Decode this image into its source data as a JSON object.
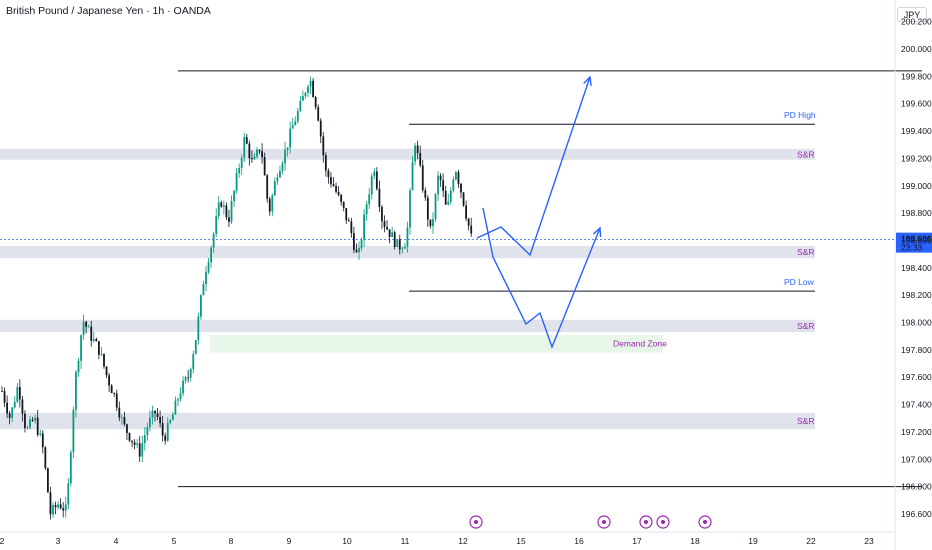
{
  "header": {
    "title": "British Pound / Japanese Yen · 1h · OANDA",
    "currency": "JPY"
  },
  "price_badge": {
    "price": "198.606",
    "countdown": "23:33"
  },
  "colors": {
    "up": "#089981",
    "down": "#131722",
    "accent": "#2962ff",
    "zone": "#e0e3eb",
    "demand": "#e8f5e9",
    "label_purple": "#9c27b0"
  },
  "chart_data": {
    "type": "candlestick",
    "title": "British Pound / Japanese Yen · 1h · OANDA",
    "y_axis_ticks": [
      196.6,
      196.8,
      197.0,
      197.2,
      197.4,
      197.6,
      197.8,
      198.0,
      198.2,
      198.4,
      198.6,
      198.8,
      199.0,
      199.2,
      199.4,
      199.6,
      199.8,
      200.0,
      200.2
    ],
    "y_tick_labels": [
      "196.600",
      "196.800",
      "197.000",
      "197.200",
      "197.400",
      "197.600",
      "197.800",
      "198.000",
      "198.200",
      "198.400",
      "198.600",
      "198.800",
      "199.000",
      "199.200",
      "199.400",
      "199.600",
      "199.800",
      "200.000",
      "200.200"
    ],
    "ylim": [
      196.55,
      200.45
    ],
    "x_axis_ticks": [
      "2",
      "3",
      "4",
      "5",
      "8",
      "9",
      "10",
      "11",
      "12",
      "15",
      "16",
      "17",
      "18",
      "19",
      "22",
      "23"
    ],
    "current_price": 198.606,
    "levels": [
      {
        "label": "",
        "value": 199.84
      },
      {
        "label": "PD High",
        "value": 199.45
      },
      {
        "label": "PD Low",
        "value": 198.23
      },
      {
        "label": "",
        "value": 196.8
      }
    ],
    "zones": [
      {
        "label": "S&R",
        "from": 199.19,
        "to": 199.27
      },
      {
        "label": "S&R",
        "from": 198.47,
        "to": 198.56
      },
      {
        "label": "S&R",
        "from": 197.93,
        "to": 198.02
      },
      {
        "label": "Demand Zone",
        "from": 197.78,
        "to": 197.91
      },
      {
        "label": "S&R",
        "from": 197.22,
        "to": 197.34
      }
    ],
    "projections": [
      {
        "name": "",
        "points": [
          [
            198.84,
            "12"
          ],
          [
            198.52,
            "12"
          ],
          [
            198.0,
            "15"
          ],
          [
            198.1,
            "15"
          ],
          [
            197.83,
            "16"
          ],
          [
            198.68,
            "16"
          ]
        ]
      },
      {
        "name": "",
        "points": [
          [
            198.62,
            "12"
          ],
          [
            198.7,
            "15"
          ],
          [
            198.51,
            "15"
          ],
          [
            199.83,
            "16"
          ]
        ]
      }
    ],
    "path": [
      [
        0,
        197.5
      ],
      [
        1,
        197.3
      ],
      [
        2,
        197.55
      ],
      [
        3,
        197.2
      ],
      [
        4,
        197.3
      ],
      [
        5,
        197.1
      ],
      [
        6,
        196.6
      ],
      [
        7,
        196.68
      ],
      [
        8,
        196.62
      ],
      [
        9,
        197.55
      ],
      [
        10,
        198.02
      ],
      [
        11,
        197.9
      ],
      [
        12,
        197.8
      ],
      [
        13,
        197.6
      ],
      [
        14,
        197.45
      ],
      [
        15,
        197.25
      ],
      [
        16,
        197.15
      ],
      [
        17,
        197.05
      ],
      [
        18,
        197.25
      ],
      [
        19,
        197.35
      ],
      [
        20,
        197.15
      ],
      [
        21,
        197.3
      ],
      [
        22,
        197.5
      ],
      [
        23,
        197.6
      ],
      [
        24,
        197.9
      ],
      [
        25,
        198.35
      ],
      [
        26,
        198.6
      ],
      [
        27,
        198.9
      ],
      [
        28,
        198.75
      ],
      [
        29,
        199.05
      ],
      [
        30,
        199.35
      ],
      [
        31,
        199.15
      ],
      [
        32,
        199.3
      ],
      [
        33,
        198.8
      ],
      [
        34,
        199.1
      ],
      [
        35,
        199.25
      ],
      [
        36,
        199.45
      ],
      [
        37,
        199.6
      ],
      [
        38,
        199.8
      ],
      [
        39,
        199.55
      ],
      [
        40,
        199.1
      ],
      [
        41,
        199.0
      ],
      [
        42,
        198.85
      ],
      [
        43,
        198.7
      ],
      [
        44,
        198.45
      ],
      [
        45,
        198.85
      ],
      [
        46,
        199.15
      ],
      [
        47,
        198.75
      ],
      [
        48,
        198.65
      ],
      [
        49,
        198.55
      ],
      [
        50,
        198.6
      ],
      [
        51,
        199.35
      ],
      [
        52,
        199.0
      ],
      [
        53,
        198.65
      ],
      [
        54,
        199.1
      ],
      [
        55,
        198.8
      ],
      [
        56,
        199.15
      ],
      [
        57,
        198.9
      ],
      [
        58,
        198.62
      ]
    ]
  }
}
